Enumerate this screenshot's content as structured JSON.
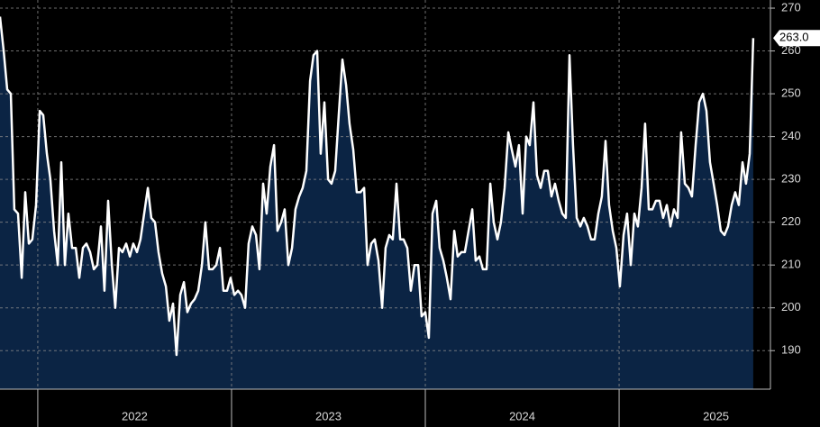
{
  "chart_data": {
    "type": "area",
    "color": "#ffffff",
    "fill": "#0b2444",
    "x": [
      2021.805,
      2021.824,
      2021.842,
      2021.861,
      2021.879,
      2021.898,
      2021.917,
      2021.935,
      2021.954,
      2021.972,
      2021.991,
      2022.01,
      2022.028,
      2022.047,
      2022.065,
      2022.084,
      2022.103,
      2022.121,
      2022.14,
      2022.158,
      2022.177,
      2022.196,
      2022.214,
      2022.233,
      2022.251,
      2022.27,
      2022.289,
      2022.307,
      2022.326,
      2022.344,
      2022.363,
      2022.382,
      2022.4,
      2022.419,
      2022.437,
      2022.456,
      2022.475,
      2022.493,
      2022.512,
      2022.53,
      2022.549,
      2022.568,
      2022.586,
      2022.605,
      2022.623,
      2022.642,
      2022.661,
      2022.679,
      2022.698,
      2022.716,
      2022.735,
      2022.754,
      2022.772,
      2022.791,
      2022.809,
      2022.828,
      2022.847,
      2022.865,
      2022.884,
      2022.902,
      2022.921,
      2022.94,
      2022.958,
      2022.977,
      2022.995,
      2023.014,
      2023.033,
      2023.051,
      2023.07,
      2023.088,
      2023.107,
      2023.126,
      2023.144,
      2023.163,
      2023.181,
      2023.2,
      2023.219,
      2023.237,
      2023.256,
      2023.274,
      2023.293,
      2023.312,
      2023.33,
      2023.349,
      2023.367,
      2023.386,
      2023.405,
      2023.423,
      2023.442,
      2023.46,
      2023.479,
      2023.498,
      2023.516,
      2023.535,
      2023.553,
      2023.572,
      2023.591,
      2023.609,
      2023.628,
      2023.646,
      2023.665,
      2023.684,
      2023.702,
      2023.721,
      2023.739,
      2023.758,
      2023.777,
      2023.795,
      2023.814,
      2023.832,
      2023.851,
      2023.87,
      2023.888,
      2023.907,
      2023.925,
      2023.944,
      2023.963,
      2023.981,
      2024.0,
      2024.018,
      2024.037,
      2024.056,
      2024.074,
      2024.093,
      2024.111,
      2024.13,
      2024.149,
      2024.167,
      2024.186,
      2024.204,
      2024.223,
      2024.242,
      2024.26,
      2024.279,
      2024.297,
      2024.316,
      2024.335,
      2024.353,
      2024.372,
      2024.39,
      2024.409,
      2024.428,
      2024.446,
      2024.465,
      2024.483,
      2024.502,
      2024.521,
      2024.539,
      2024.558,
      2024.576,
      2024.595,
      2024.614,
      2024.632,
      2024.651,
      2024.669,
      2024.688,
      2024.707,
      2024.725,
      2024.744,
      2024.762,
      2024.781,
      2024.8,
      2024.818,
      2024.837,
      2024.855,
      2024.874,
      2024.893,
      2024.911,
      2024.93,
      2024.948,
      2024.967,
      2024.986,
      2025.004,
      2025.023,
      2025.041,
      2025.06,
      2025.079,
      2025.097,
      2025.116,
      2025.134,
      2025.153,
      2025.172,
      2025.19,
      2025.209,
      2025.227,
      2025.246,
      2025.265,
      2025.283,
      2025.302,
      2025.32,
      2025.339,
      2025.358,
      2025.376,
      2025.395,
      2025.413,
      2025.432,
      2025.451,
      2025.469,
      2025.488,
      2025.506,
      2025.525,
      2025.544,
      2025.562,
      2025.581,
      2025.599,
      2025.618,
      2025.637,
      2025.655,
      2025.674,
      2025.692
    ],
    "values": [
      268,
      260,
      251,
      250,
      223,
      222,
      207,
      227,
      215,
      216,
      224,
      246,
      245,
      236,
      230,
      218,
      210,
      234,
      210,
      222,
      214,
      214,
      207,
      214,
      215,
      213,
      209,
      210,
      219,
      204,
      225,
      210,
      200,
      214,
      213,
      215,
      212,
      215,
      213,
      216,
      222,
      228,
      221,
      220,
      213,
      208,
      205,
      197,
      201,
      189,
      203,
      206,
      199,
      201,
      202,
      204,
      210,
      220,
      209,
      209,
      210,
      214,
      204,
      204,
      207,
      203,
      204,
      203,
      200,
      215,
      219,
      217,
      209,
      229,
      222,
      233,
      238,
      218,
      220,
      223,
      210,
      214,
      223,
      226,
      228,
      232,
      253,
      259,
      260,
      236,
      248,
      230,
      229,
      232,
      245,
      258,
      252,
      243,
      237,
      227,
      227,
      228,
      210,
      215,
      216,
      211,
      200,
      214,
      217,
      216,
      229,
      216,
      216,
      214,
      204,
      210,
      210,
      198,
      199,
      193,
      222,
      225,
      214,
      211,
      207,
      202,
      218,
      212,
      213,
      213,
      218,
      223,
      211,
      212,
      209,
      209,
      229,
      220,
      216,
      220,
      228,
      241,
      237,
      233,
      238,
      222,
      240,
      238,
      248,
      231,
      228,
      232,
      232,
      226,
      229,
      225,
      222,
      221,
      259,
      238,
      221,
      219,
      221,
      219,
      216,
      216,
      222,
      226,
      239,
      224,
      218,
      214,
      205,
      217,
      222,
      210,
      222,
      219,
      228,
      243,
      223,
      223,
      225,
      225,
      221,
      224,
      219,
      223,
      221,
      241,
      229,
      228,
      226,
      238,
      248,
      250,
      246,
      234,
      229,
      224,
      218,
      217,
      219,
      224,
      227,
      224,
      234,
      229,
      236,
      263
    ],
    "value_labels": [
      null,
      null,
      null,
      null,
      null,
      null,
      null,
      null,
      null,
      null,
      null,
      null,
      null,
      null,
      null,
      null,
      null,
      null,
      null,
      null,
      null,
      null,
      null,
      null,
      null,
      null,
      null,
      null,
      null,
      null,
      null,
      null,
      null,
      null,
      null,
      null,
      null,
      null,
      null,
      null,
      null,
      null,
      null,
      null,
      null,
      null,
      null,
      null,
      null,
      null,
      null,
      null,
      null,
      null,
      null,
      null,
      null,
      null,
      null,
      null,
      null,
      null,
      null,
      null,
      null,
      null,
      null,
      null,
      null,
      null,
      null,
      null,
      null,
      null,
      null,
      null,
      null,
      null,
      null,
      null,
      null,
      null,
      null,
      null,
      null,
      null,
      null,
      null,
      null,
      null,
      null,
      null,
      null,
      null,
      null,
      null,
      null,
      null,
      null,
      null,
      null,
      null,
      null,
      null,
      null,
      null,
      null,
      null,
      null,
      null,
      null,
      null,
      null,
      null,
      null,
      null,
      null,
      null,
      null,
      null,
      null,
      null,
      null,
      null,
      null,
      null,
      null,
      null,
      null,
      null,
      null,
      null,
      null,
      null,
      null,
      null,
      null,
      null,
      null,
      null,
      null,
      null,
      null,
      null,
      null,
      null,
      null,
      null,
      null,
      null,
      null,
      null,
      null,
      null,
      null,
      null,
      null,
      null,
      null,
      null,
      null,
      null,
      null,
      null,
      null,
      null,
      null,
      null,
      null,
      null,
      null,
      null,
      null,
      null,
      null,
      null,
      null,
      null,
      null,
      null,
      null,
      null,
      null,
      null,
      null,
      null,
      null,
      null,
      null,
      null,
      null,
      null,
      null,
      null,
      null,
      null,
      null,
      null,
      null,
      null,
      null,
      null,
      null,
      null,
      null,
      null,
      null,
      null,
      null,
      "263.0"
    ],
    "xlim": [
      2021.805,
      2025.781
    ],
    "xticks": [
      {
        "value": 2022.5,
        "label": "2022"
      },
      {
        "value": 2023.5,
        "label": "2023"
      },
      {
        "value": 2024.5,
        "label": "2024"
      },
      {
        "value": 2025.5,
        "label": "2025"
      }
    ],
    "ylim": [
      181,
      271.9
    ],
    "yticks": [
      190,
      200,
      210,
      220,
      230,
      240,
      250,
      260,
      270
    ],
    "grid": true
  }
}
